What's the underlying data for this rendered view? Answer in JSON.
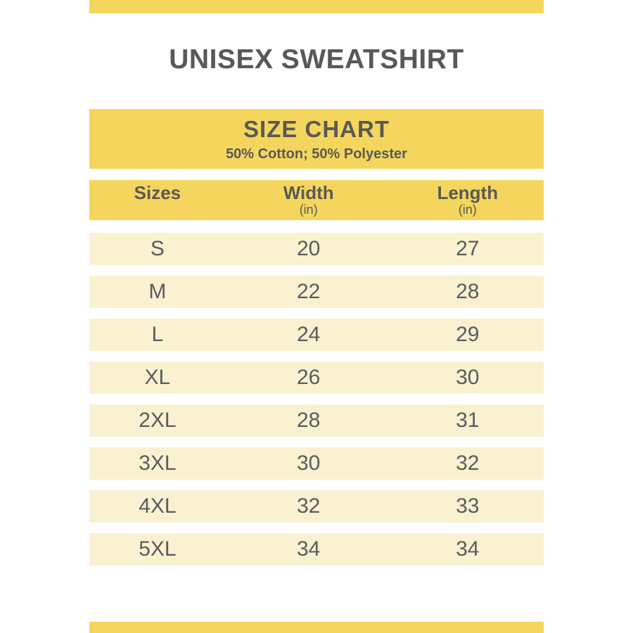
{
  "page": {
    "title": "UNISEX SWEATSHIRT"
  },
  "size_chart": {
    "heading": "SIZE CHART",
    "subheading": "50% Cotton; 50% Polyester",
    "columns": {
      "sizes": {
        "label": "Sizes",
        "unit": ""
      },
      "width": {
        "label": "Width",
        "unit": "(in)"
      },
      "length": {
        "label": "Length",
        "unit": "(in)"
      }
    },
    "rows": [
      {
        "size": "S",
        "width": "20",
        "length": "27"
      },
      {
        "size": "M",
        "width": "22",
        "length": "28"
      },
      {
        "size": "L",
        "width": "24",
        "length": "29"
      },
      {
        "size": "XL",
        "width": "26",
        "length": "30"
      },
      {
        "size": "2XL",
        "width": "28",
        "length": "31"
      },
      {
        "size": "3XL",
        "width": "30",
        "length": "32"
      },
      {
        "size": "4XL",
        "width": "32",
        "length": "33"
      },
      {
        "size": "5XL",
        "width": "34",
        "length": "34"
      }
    ]
  },
  "chart_data": {
    "type": "table",
    "title": "SIZE CHART",
    "subtitle": "50% Cotton; 50% Polyester",
    "columns": [
      "Sizes",
      "Width (in)",
      "Length (in)"
    ],
    "rows": [
      [
        "S",
        20,
        27
      ],
      [
        "M",
        22,
        28
      ],
      [
        "L",
        24,
        29
      ],
      [
        "XL",
        26,
        30
      ],
      [
        "2XL",
        28,
        31
      ],
      [
        "3XL",
        30,
        32
      ],
      [
        "4XL",
        32,
        33
      ],
      [
        "5XL",
        34,
        34
      ]
    ]
  },
  "colors": {
    "accent_yellow": "#F4D65E",
    "row_cream": "#FAF1D0",
    "title_text": "#58585A",
    "cell_text": "#5B5B5F"
  }
}
